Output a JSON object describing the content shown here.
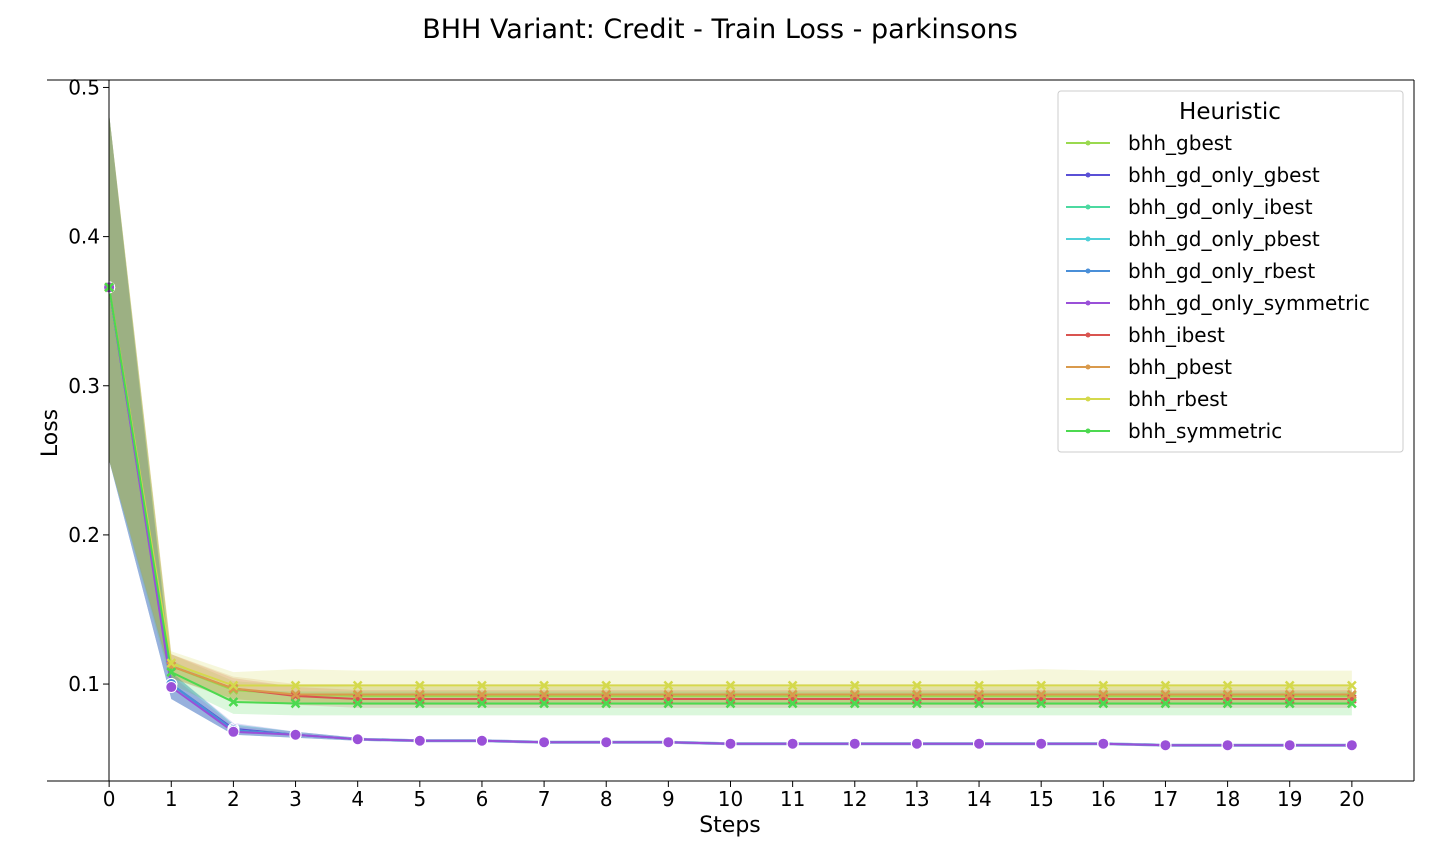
{
  "chart_data": {
    "type": "line",
    "title": "BHH Variant: Credit - Train Loss - parkinsons",
    "xlabel": "Steps",
    "ylabel": "Loss",
    "xlim": [
      -1,
      21
    ],
    "ylim": [
      0.035,
      0.505
    ],
    "xticks": [
      0,
      1,
      2,
      3,
      4,
      5,
      6,
      7,
      8,
      9,
      10,
      11,
      12,
      13,
      14,
      15,
      16,
      17,
      18,
      19,
      20
    ],
    "yticks": [
      0.1,
      0.2,
      0.3,
      0.4,
      0.5
    ],
    "ytick_labels": [
      "0.1",
      "0.2",
      "0.3",
      "0.4",
      "0.5"
    ],
    "legend": {
      "title": "Heuristic",
      "placement": "top-right"
    },
    "grid": false,
    "x": [
      0,
      1,
      2,
      3,
      4,
      5,
      6,
      7,
      8,
      9,
      10,
      11,
      12,
      13,
      14,
      15,
      16,
      17,
      18,
      19,
      20
    ],
    "series": [
      {
        "name": "bhh_gbest",
        "color": "#9ad94f",
        "marker": "x",
        "values": [
          0.366,
          0.112,
          0.096,
          0.093,
          0.092,
          0.092,
          0.092,
          0.092,
          0.092,
          0.092,
          0.092,
          0.092,
          0.092,
          0.092,
          0.092,
          0.092,
          0.092,
          0.092,
          0.092,
          0.092,
          0.092
        ],
        "band_low": [
          0.25,
          0.104,
          0.09,
          0.087,
          0.086,
          0.086,
          0.086,
          0.086,
          0.086,
          0.086,
          0.086,
          0.086,
          0.086,
          0.086,
          0.086,
          0.086,
          0.086,
          0.086,
          0.086,
          0.086,
          0.086
        ],
        "band_high": [
          0.482,
          0.12,
          0.102,
          0.099,
          0.098,
          0.098,
          0.098,
          0.098,
          0.098,
          0.098,
          0.098,
          0.098,
          0.098,
          0.098,
          0.098,
          0.098,
          0.098,
          0.098,
          0.098,
          0.098,
          0.098
        ]
      },
      {
        "name": "bhh_gd_only_gbest",
        "color": "#5a50d6",
        "marker": "o",
        "values": [
          0.366,
          0.1,
          0.07,
          0.066,
          0.063,
          0.062,
          0.062,
          0.061,
          0.061,
          0.061,
          0.06,
          0.06,
          0.06,
          0.06,
          0.06,
          0.06,
          0.06,
          0.059,
          0.059,
          0.059,
          0.059
        ],
        "band_low": [
          0.25,
          0.09,
          0.066,
          0.064,
          0.062,
          0.061,
          0.061,
          0.06,
          0.06,
          0.06,
          0.059,
          0.059,
          0.059,
          0.059,
          0.059,
          0.059,
          0.059,
          0.058,
          0.058,
          0.058,
          0.058
        ],
        "band_high": [
          0.482,
          0.108,
          0.074,
          0.068,
          0.064,
          0.063,
          0.063,
          0.062,
          0.062,
          0.062,
          0.061,
          0.061,
          0.061,
          0.061,
          0.061,
          0.061,
          0.061,
          0.06,
          0.06,
          0.06,
          0.06
        ]
      },
      {
        "name": "bhh_gd_only_ibest",
        "color": "#4cd9a0",
        "marker": "o",
        "values": [
          0.366,
          0.1,
          0.069,
          0.066,
          0.063,
          0.062,
          0.062,
          0.061,
          0.061,
          0.061,
          0.06,
          0.06,
          0.06,
          0.06,
          0.06,
          0.06,
          0.06,
          0.059,
          0.059,
          0.059,
          0.059
        ],
        "band_low": [
          0.25,
          0.09,
          0.066,
          0.064,
          0.062,
          0.061,
          0.061,
          0.06,
          0.06,
          0.06,
          0.059,
          0.059,
          0.059,
          0.059,
          0.059,
          0.059,
          0.059,
          0.058,
          0.058,
          0.058,
          0.058
        ],
        "band_high": [
          0.482,
          0.108,
          0.073,
          0.068,
          0.064,
          0.063,
          0.063,
          0.062,
          0.062,
          0.062,
          0.061,
          0.061,
          0.061,
          0.061,
          0.061,
          0.061,
          0.061,
          0.06,
          0.06,
          0.06,
          0.06
        ]
      },
      {
        "name": "bhh_gd_only_pbest",
        "color": "#4fd0d8",
        "marker": "o",
        "values": [
          0.366,
          0.1,
          0.069,
          0.066,
          0.063,
          0.062,
          0.062,
          0.061,
          0.061,
          0.061,
          0.06,
          0.06,
          0.06,
          0.06,
          0.06,
          0.06,
          0.06,
          0.059,
          0.059,
          0.059,
          0.059
        ],
        "band_low": [
          0.25,
          0.09,
          0.066,
          0.064,
          0.062,
          0.061,
          0.061,
          0.06,
          0.06,
          0.06,
          0.059,
          0.059,
          0.059,
          0.059,
          0.059,
          0.059,
          0.059,
          0.058,
          0.058,
          0.058,
          0.058
        ],
        "band_high": [
          0.482,
          0.108,
          0.073,
          0.068,
          0.064,
          0.063,
          0.063,
          0.062,
          0.062,
          0.062,
          0.061,
          0.061,
          0.061,
          0.061,
          0.061,
          0.061,
          0.061,
          0.06,
          0.06,
          0.06,
          0.06
        ]
      },
      {
        "name": "bhh_gd_only_rbest",
        "color": "#4a8fd8",
        "marker": "o",
        "values": [
          0.366,
          0.1,
          0.069,
          0.066,
          0.063,
          0.062,
          0.062,
          0.061,
          0.061,
          0.061,
          0.06,
          0.06,
          0.06,
          0.06,
          0.06,
          0.06,
          0.06,
          0.059,
          0.059,
          0.059,
          0.059
        ],
        "band_low": [
          0.25,
          0.09,
          0.066,
          0.064,
          0.062,
          0.061,
          0.061,
          0.06,
          0.06,
          0.06,
          0.059,
          0.059,
          0.059,
          0.059,
          0.059,
          0.059,
          0.059,
          0.058,
          0.058,
          0.058,
          0.058
        ],
        "band_high": [
          0.482,
          0.108,
          0.073,
          0.068,
          0.064,
          0.063,
          0.063,
          0.062,
          0.062,
          0.062,
          0.061,
          0.061,
          0.061,
          0.061,
          0.061,
          0.061,
          0.061,
          0.06,
          0.06,
          0.06,
          0.06
        ]
      },
      {
        "name": "bhh_gd_only_symmetric",
        "color": "#9a50d8",
        "marker": "o",
        "values": [
          0.366,
          0.098,
          0.068,
          0.066,
          0.063,
          0.062,
          0.062,
          0.061,
          0.061,
          0.061,
          0.06,
          0.06,
          0.06,
          0.06,
          0.06,
          0.06,
          0.06,
          0.059,
          0.059,
          0.059,
          0.059
        ],
        "band_low": [
          0.25,
          0.09,
          0.066,
          0.064,
          0.062,
          0.061,
          0.061,
          0.06,
          0.06,
          0.06,
          0.059,
          0.059,
          0.059,
          0.059,
          0.059,
          0.059,
          0.059,
          0.058,
          0.058,
          0.058,
          0.058
        ],
        "band_high": [
          0.482,
          0.106,
          0.072,
          0.068,
          0.064,
          0.063,
          0.063,
          0.062,
          0.062,
          0.062,
          0.061,
          0.061,
          0.061,
          0.061,
          0.061,
          0.061,
          0.061,
          0.06,
          0.06,
          0.06,
          0.06
        ]
      },
      {
        "name": "bhh_ibest",
        "color": "#d95450",
        "marker": "x",
        "values": [
          0.366,
          0.112,
          0.097,
          0.092,
          0.09,
          0.09,
          0.09,
          0.09,
          0.09,
          0.09,
          0.09,
          0.09,
          0.09,
          0.09,
          0.09,
          0.09,
          0.09,
          0.09,
          0.09,
          0.09,
          0.09
        ],
        "band_low": [
          0.25,
          0.104,
          0.09,
          0.086,
          0.084,
          0.084,
          0.084,
          0.084,
          0.084,
          0.084,
          0.084,
          0.084,
          0.084,
          0.084,
          0.084,
          0.084,
          0.084,
          0.084,
          0.084,
          0.084,
          0.084
        ],
        "band_high": [
          0.482,
          0.12,
          0.104,
          0.098,
          0.096,
          0.096,
          0.096,
          0.096,
          0.096,
          0.096,
          0.096,
          0.096,
          0.096,
          0.096,
          0.096,
          0.096,
          0.096,
          0.096,
          0.096,
          0.096,
          0.096
        ]
      },
      {
        "name": "bhh_pbest",
        "color": "#d99a4c",
        "marker": "x",
        "values": [
          0.366,
          0.112,
          0.097,
          0.093,
          0.093,
          0.093,
          0.093,
          0.093,
          0.093,
          0.093,
          0.093,
          0.093,
          0.093,
          0.093,
          0.093,
          0.093,
          0.093,
          0.093,
          0.093,
          0.093,
          0.093
        ],
        "band_low": [
          0.25,
          0.104,
          0.089,
          0.086,
          0.086,
          0.086,
          0.086,
          0.086,
          0.086,
          0.086,
          0.086,
          0.086,
          0.086,
          0.086,
          0.086,
          0.086,
          0.086,
          0.086,
          0.086,
          0.086,
          0.086
        ],
        "band_high": [
          0.482,
          0.12,
          0.105,
          0.1,
          0.1,
          0.1,
          0.1,
          0.1,
          0.1,
          0.1,
          0.1,
          0.1,
          0.1,
          0.1,
          0.1,
          0.1,
          0.1,
          0.1,
          0.1,
          0.1,
          0.1
        ]
      },
      {
        "name": "bhh_rbest",
        "color": "#d4d94c",
        "marker": "x",
        "values": [
          0.366,
          0.114,
          0.099,
          0.099,
          0.099,
          0.099,
          0.099,
          0.099,
          0.099,
          0.099,
          0.099,
          0.099,
          0.099,
          0.099,
          0.099,
          0.099,
          0.099,
          0.099,
          0.099,
          0.099,
          0.099
        ],
        "band_low": [
          0.25,
          0.106,
          0.088,
          0.088,
          0.088,
          0.088,
          0.088,
          0.088,
          0.088,
          0.088,
          0.088,
          0.088,
          0.088,
          0.088,
          0.088,
          0.088,
          0.088,
          0.088,
          0.088,
          0.088,
          0.088
        ],
        "band_high": [
          0.482,
          0.122,
          0.108,
          0.11,
          0.109,
          0.109,
          0.109,
          0.109,
          0.109,
          0.109,
          0.109,
          0.109,
          0.109,
          0.109,
          0.109,
          0.11,
          0.109,
          0.109,
          0.109,
          0.109,
          0.109
        ]
      },
      {
        "name": "bhh_symmetric",
        "color": "#4cd950",
        "marker": "x",
        "values": [
          0.366,
          0.108,
          0.088,
          0.087,
          0.087,
          0.087,
          0.087,
          0.087,
          0.087,
          0.087,
          0.087,
          0.087,
          0.087,
          0.087,
          0.087,
          0.087,
          0.087,
          0.087,
          0.087,
          0.087,
          0.087
        ],
        "band_low": [
          0.25,
          0.1,
          0.08,
          0.079,
          0.079,
          0.079,
          0.079,
          0.079,
          0.079,
          0.079,
          0.079,
          0.079,
          0.079,
          0.079,
          0.079,
          0.079,
          0.079,
          0.079,
          0.079,
          0.079,
          0.079
        ],
        "band_high": [
          0.482,
          0.116,
          0.096,
          0.095,
          0.095,
          0.095,
          0.095,
          0.095,
          0.095,
          0.095,
          0.095,
          0.095,
          0.095,
          0.095,
          0.095,
          0.095,
          0.095,
          0.095,
          0.095,
          0.095,
          0.095
        ]
      }
    ]
  }
}
